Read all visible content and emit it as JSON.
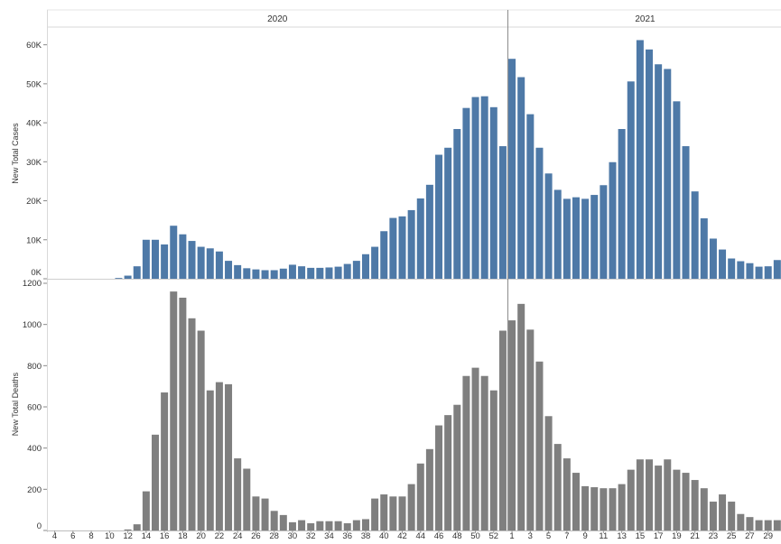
{
  "chart_data": [
    {
      "type": "bar",
      "title": "",
      "xlabel": "",
      "ylabel": "New Total Cases",
      "ylim": [
        0,
        62000
      ],
      "yticks": [
        0,
        10000,
        20000,
        30000,
        40000,
        50000,
        60000
      ],
      "ytick_labels": [
        "0K",
        "10K",
        "20K",
        "30K",
        "40K",
        "50K",
        "60K"
      ],
      "x_panels": [
        {
          "label": "2020",
          "weeks": [
            4,
            5,
            6,
            7,
            8,
            9,
            10,
            11,
            12,
            13,
            14,
            15,
            16,
            17,
            18,
            19,
            20,
            21,
            22,
            23,
            24,
            25,
            26,
            27,
            28,
            29,
            30,
            31,
            32,
            33,
            34,
            35,
            36,
            37,
            38,
            39,
            40,
            41,
            42,
            43,
            44,
            45,
            46,
            47,
            48,
            49,
            50,
            51,
            52,
            53
          ]
        },
        {
          "label": "2021",
          "weeks": [
            1,
            2,
            3,
            4,
            5,
            6,
            7,
            8,
            9,
            10,
            11,
            12,
            13,
            14,
            15,
            16,
            17,
            18,
            19,
            20,
            21,
            22,
            23,
            24,
            25,
            26,
            27,
            28,
            29,
            30
          ]
        }
      ],
      "categories": [
        "2020-W4",
        "2020-W5",
        "2020-W6",
        "2020-W7",
        "2020-W8",
        "2020-W9",
        "2020-W10",
        "2020-W11",
        "2020-W12",
        "2020-W13",
        "2020-W14",
        "2020-W15",
        "2020-W16",
        "2020-W17",
        "2020-W18",
        "2020-W19",
        "2020-W20",
        "2020-W21",
        "2020-W22",
        "2020-W23",
        "2020-W24",
        "2020-W25",
        "2020-W26",
        "2020-W27",
        "2020-W28",
        "2020-W29",
        "2020-W30",
        "2020-W31",
        "2020-W32",
        "2020-W33",
        "2020-W34",
        "2020-W35",
        "2020-W36",
        "2020-W37",
        "2020-W38",
        "2020-W39",
        "2020-W40",
        "2020-W41",
        "2020-W42",
        "2020-W43",
        "2020-W44",
        "2020-W45",
        "2020-W46",
        "2020-W47",
        "2020-W48",
        "2020-W49",
        "2020-W50",
        "2020-W51",
        "2020-W52",
        "2020-W53",
        "2021-W1",
        "2021-W2",
        "2021-W3",
        "2021-W4",
        "2021-W5",
        "2021-W6",
        "2021-W7",
        "2021-W8",
        "2021-W9",
        "2021-W10",
        "2021-W11",
        "2021-W12",
        "2021-W13",
        "2021-W14",
        "2021-W15",
        "2021-W16",
        "2021-W17",
        "2021-W18",
        "2021-W19",
        "2021-W20",
        "2021-W21",
        "2021-W22",
        "2021-W23",
        "2021-W24",
        "2021-W25",
        "2021-W26",
        "2021-W27",
        "2021-W28",
        "2021-W29",
        "2021-W30"
      ],
      "values": [
        0,
        0,
        0,
        0,
        0,
        0,
        0,
        200,
        800,
        3200,
        10000,
        10000,
        8800,
        13600,
        11400,
        9700,
        8200,
        7800,
        7000,
        4600,
        3500,
        2700,
        2400,
        2200,
        2200,
        2600,
        3600,
        3200,
        2800,
        2800,
        2900,
        3100,
        3800,
        4600,
        6300,
        8200,
        12200,
        15600,
        16000,
        17600,
        20600,
        24100,
        31800,
        33600,
        38400,
        43800,
        46600,
        46800,
        44000,
        34000,
        56400,
        51700,
        42200,
        33600,
        27000,
        22800,
        20500,
        20900,
        20500,
        21500,
        24000,
        29900,
        38400,
        50600,
        61200,
        58800,
        55000,
        53800,
        45500,
        34000,
        22400,
        15500,
        10300,
        7500,
        5200,
        4500,
        4000,
        3100,
        3200,
        4800
      ],
      "color": "#4e79a7"
    },
    {
      "type": "bar",
      "title": "",
      "xlabel": "",
      "ylabel": "New Total Deaths",
      "ylim": [
        0,
        1200
      ],
      "yticks": [
        0,
        200,
        400,
        600,
        800,
        1000,
        1200
      ],
      "ytick_labels": [
        "0",
        "200",
        "400",
        "600",
        "800",
        "1000",
        "1200"
      ],
      "xtick_labels": [
        "4",
        "6",
        "8",
        "10",
        "12",
        "14",
        "16",
        "18",
        "20",
        "22",
        "24",
        "26",
        "28",
        "30",
        "32",
        "34",
        "36",
        "38",
        "40",
        "42",
        "44",
        "46",
        "48",
        "50",
        "52",
        "1",
        "3",
        "5",
        "7",
        "9",
        "11",
        "13",
        "15",
        "17",
        "19",
        "21",
        "23",
        "25",
        "27",
        "29"
      ],
      "categories": "same as chart 1",
      "values": [
        0,
        0,
        0,
        0,
        0,
        0,
        0,
        0,
        5,
        30,
        190,
        465,
        670,
        1160,
        1130,
        1030,
        970,
        680,
        720,
        710,
        350,
        300,
        165,
        155,
        95,
        75,
        40,
        50,
        35,
        45,
        45,
        45,
        35,
        50,
        55,
        155,
        175,
        165,
        165,
        225,
        325,
        395,
        510,
        560,
        610,
        750,
        790,
        750,
        680,
        970,
        1020,
        1100,
        975,
        820,
        555,
        420,
        350,
        280,
        215,
        210,
        205,
        205,
        225,
        295,
        345,
        345,
        315,
        345,
        295,
        280,
        245,
        205,
        140,
        175,
        140,
        80,
        65,
        50,
        50,
        50
      ],
      "color": "#7f7f7f"
    }
  ]
}
